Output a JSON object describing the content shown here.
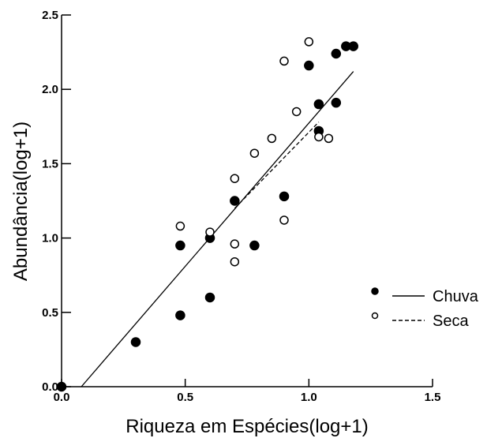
{
  "chart_data": {
    "type": "scatter",
    "title": "",
    "xlabel": "Riqueza em Espécies(log+1)",
    "ylabel": "Abundância(log+1)",
    "xlim": [
      0,
      1.5
    ],
    "ylim": [
      0,
      2.5
    ],
    "x_ticks": [
      "0.0",
      "0.5",
      "1.0",
      "1.5"
    ],
    "y_ticks": [
      "0.0",
      "0.5",
      "1.0",
      "1.5",
      "2.0",
      "2.5"
    ],
    "grid": false,
    "legend_position": "bottom-right",
    "series": [
      {
        "name": "Chuva",
        "marker": "filled-circle",
        "line_style": "solid",
        "points": [
          [
            0.0,
            0.0
          ],
          [
            0.3,
            0.3
          ],
          [
            0.48,
            0.48
          ],
          [
            0.48,
            0.95
          ],
          [
            0.6,
            0.6
          ],
          [
            0.6,
            1.0
          ],
          [
            0.7,
            1.25
          ],
          [
            0.78,
            0.95
          ],
          [
            0.9,
            1.28
          ],
          [
            1.0,
            2.16
          ],
          [
            1.04,
            1.9
          ],
          [
            1.04,
            1.72
          ],
          [
            1.11,
            1.91
          ],
          [
            1.11,
            2.24
          ],
          [
            1.15,
            2.29
          ],
          [
            1.18,
            2.29
          ]
        ],
        "fit_line": [
          [
            0.08,
            0.0
          ],
          [
            1.18,
            2.12
          ]
        ]
      },
      {
        "name": "Seca",
        "marker": "open-circle",
        "line_style": "dashed",
        "points": [
          [
            0.48,
            1.08
          ],
          [
            0.6,
            1.04
          ],
          [
            0.7,
            0.84
          ],
          [
            0.7,
            0.96
          ],
          [
            0.7,
            1.4
          ],
          [
            0.78,
            1.57
          ],
          [
            0.85,
            1.67
          ],
          [
            0.9,
            1.12
          ],
          [
            0.9,
            2.19
          ],
          [
            0.95,
            1.85
          ],
          [
            1.0,
            2.32
          ],
          [
            1.04,
            1.68
          ],
          [
            1.08,
            1.67
          ]
        ],
        "fit_line": [
          [
            0.7,
            1.2
          ],
          [
            1.04,
            1.78
          ]
        ]
      }
    ]
  }
}
